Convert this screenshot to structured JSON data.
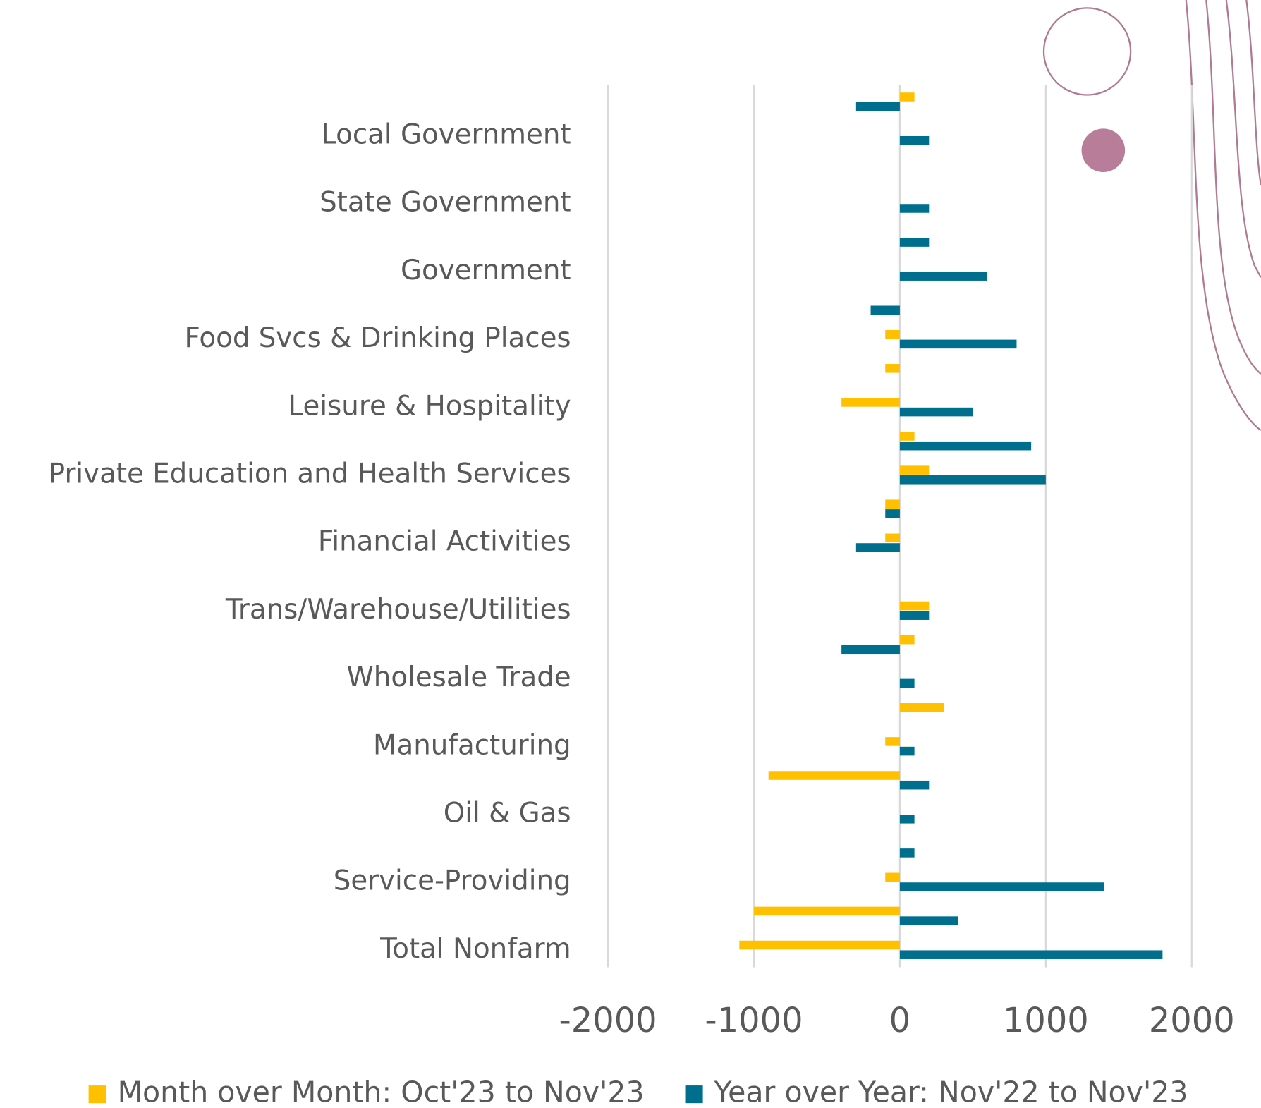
{
  "chart_data": {
    "type": "bar",
    "orientation": "horizontal",
    "categories": [
      null,
      "Local Government",
      null,
      "State Government",
      null,
      "Government",
      null,
      "Food Svcs & Drinking Places",
      null,
      "Leisure & Hospitality",
      null,
      "Private Education and Health Services",
      null,
      "Financial Activities",
      null,
      "Trans/Warehouse/Utilities",
      null,
      "Wholesale Trade",
      null,
      "Manufacturing",
      null,
      "Oil & Gas",
      null,
      "Service-Providing",
      null,
      "Total Nonfarm"
    ],
    "series": [
      {
        "name": "Month over Month: Oct'23 to Nov'23",
        "color": "#ffc000",
        "values": [
          100,
          0,
          0,
          0,
          0,
          0,
          0,
          -100,
          -100,
          -400,
          100,
          200,
          -100,
          -100,
          0,
          200,
          100,
          0,
          300,
          -100,
          -900,
          0,
          0,
          -100,
          -1000,
          -1100
        ]
      },
      {
        "name": "Year over Year: Nov'22 to Nov'23",
        "color": "#006f8e",
        "values": [
          -300,
          200,
          0,
          200,
          200,
          600,
          -200,
          800,
          0,
          500,
          900,
          1000,
          -100,
          -300,
          0,
          200,
          -400,
          100,
          0,
          100,
          200,
          100,
          100,
          1400,
          400,
          1800
        ]
      }
    ],
    "xlim": [
      -2000,
      2000
    ],
    "xticks": [
      -2000,
      -1000,
      0,
      1000,
      2000
    ],
    "grid": true,
    "legend": "bottom"
  }
}
